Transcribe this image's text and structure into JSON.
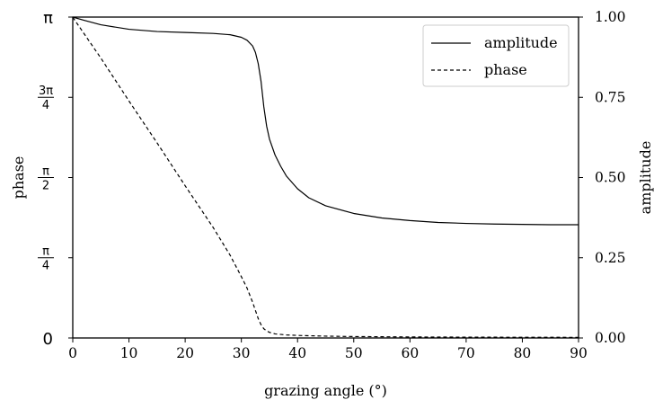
{
  "chart_data": {
    "type": "line",
    "xlabel": "grazing angle (°)",
    "ylabel_left": "phase",
    "ylabel_right": "amplitude",
    "xlim": [
      0,
      90
    ],
    "ylim_left": [
      0,
      3.14159
    ],
    "ylim_right": [
      0,
      1.0
    ],
    "grid": false,
    "legend_placement": "top-right",
    "x_ticks": [
      0,
      10,
      20,
      30,
      40,
      50,
      60,
      70,
      80,
      90
    ],
    "x_tick_labels": [
      "0",
      "10",
      "20",
      "30",
      "40",
      "50",
      "60",
      "70",
      "80",
      "90"
    ],
    "left_ticks": [
      {
        "value": 0,
        "label": "0"
      },
      {
        "value": 0.7854,
        "num": "π",
        "den": "4"
      },
      {
        "value": 1.5708,
        "num": "π",
        "den": "2"
      },
      {
        "value": 2.3562,
        "num": "3π",
        "den": "4"
      },
      {
        "value": 3.14159,
        "label": "π"
      }
    ],
    "right_ticks": [
      0.0,
      0.25,
      0.5,
      0.75,
      1.0
    ],
    "right_tick_labels": [
      "0.00",
      "0.25",
      "0.50",
      "0.75",
      "1.00"
    ],
    "series": [
      {
        "name": "amplitude",
        "axis": "right",
        "style": "solid",
        "color": "#000000",
        "x": [
          0,
          2,
          5,
          10,
          15,
          20,
          25,
          28,
          30,
          31,
          32,
          32.5,
          33,
          33.5,
          34,
          34.5,
          35,
          36,
          37,
          38,
          40,
          42,
          45,
          50,
          55,
          60,
          65,
          70,
          75,
          80,
          85,
          90
        ],
        "y": [
          1.0,
          0.99,
          0.976,
          0.962,
          0.955,
          0.952,
          0.949,
          0.945,
          0.937,
          0.928,
          0.91,
          0.89,
          0.855,
          0.8,
          0.72,
          0.66,
          0.62,
          0.57,
          0.535,
          0.505,
          0.465,
          0.437,
          0.412,
          0.388,
          0.374,
          0.366,
          0.36,
          0.357,
          0.355,
          0.354,
          0.353,
          0.353
        ]
      },
      {
        "name": "phase",
        "axis": "left",
        "style": "dashed",
        "color": "#000000",
        "x": [
          0,
          5,
          10,
          15,
          20,
          25,
          28,
          30,
          31,
          32,
          32.5,
          33,
          33.5,
          34,
          34.5,
          35,
          36,
          38,
          40,
          45,
          50,
          60,
          70,
          80,
          90
        ],
        "y": [
          3.14,
          2.74,
          2.32,
          1.91,
          1.49,
          1.08,
          0.81,
          0.6,
          0.49,
          0.35,
          0.27,
          0.19,
          0.13,
          0.09,
          0.07,
          0.055,
          0.04,
          0.03,
          0.025,
          0.018,
          0.014,
          0.01,
          0.008,
          0.007,
          0.006
        ]
      }
    ]
  }
}
